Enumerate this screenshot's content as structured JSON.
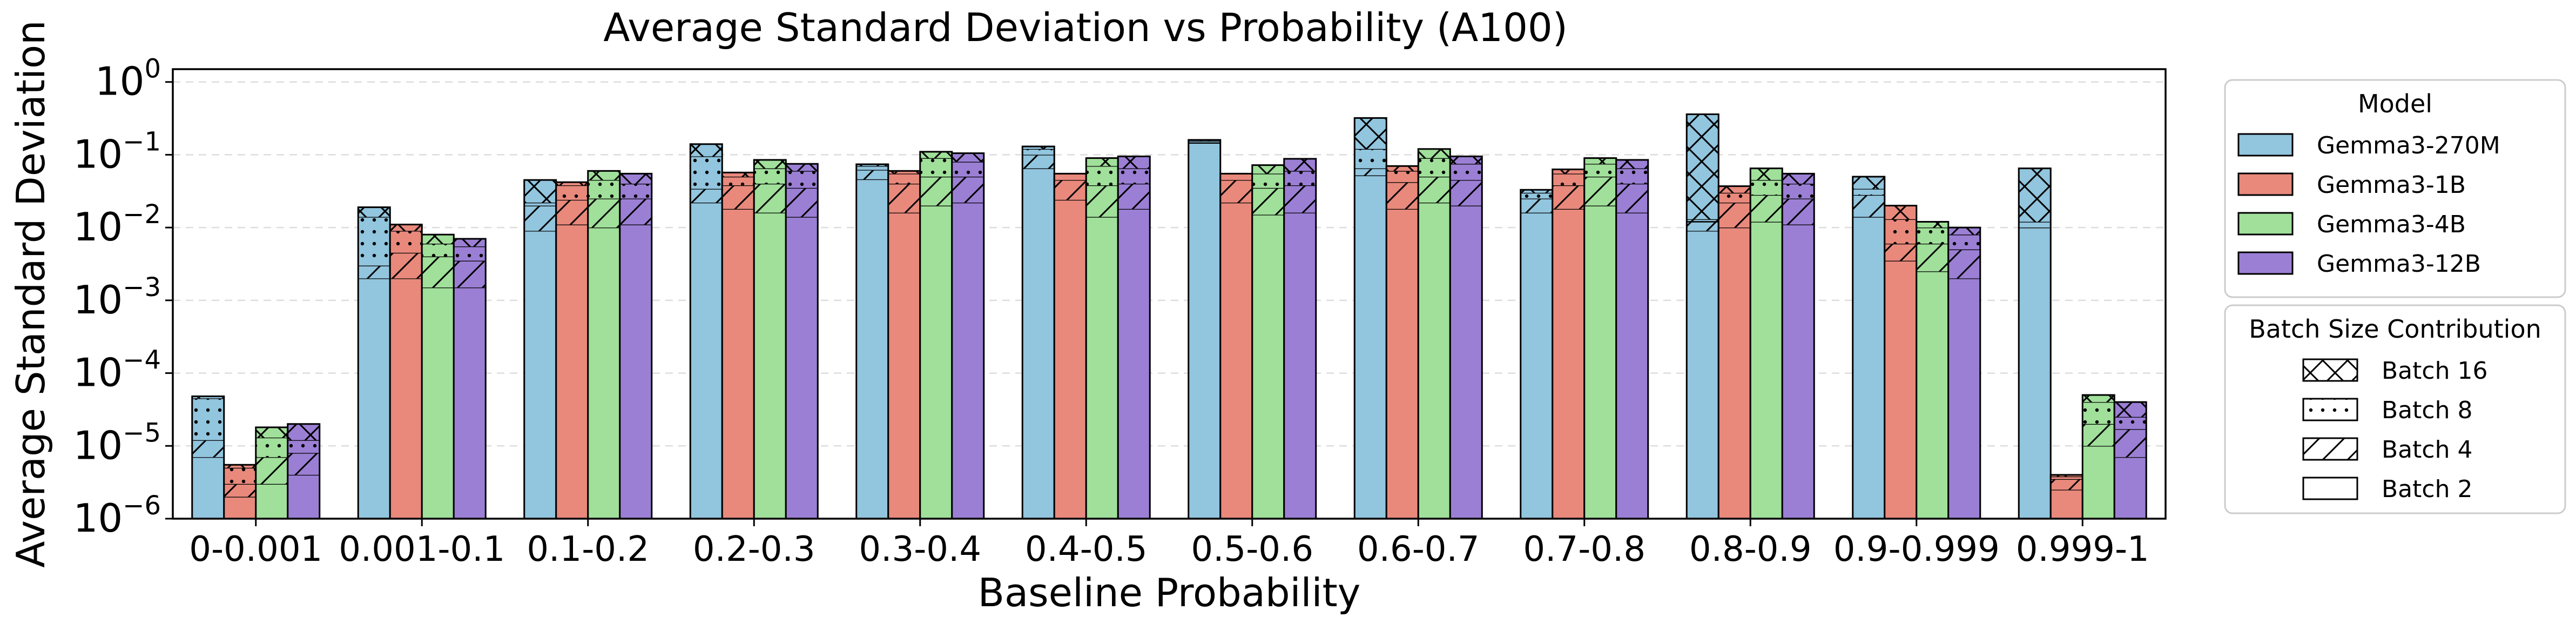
{
  "chart_data": {
    "type": "bar",
    "title": "Average Standard Deviation vs Probability (A100)",
    "xlabel": "Baseline Probability",
    "ylabel": "Average Standard Deviation",
    "yscale": "log",
    "ylim": [
      1e-06,
      1.5
    ],
    "grid": "horizontal dashed",
    "categories": [
      "0-0.001",
      "0.001-0.1",
      "0.1-0.2",
      "0.2-0.3",
      "0.3-0.4",
      "0.4-0.5",
      "0.5-0.6",
      "0.6-0.7",
      "0.7-0.8",
      "0.8-0.9",
      "0.9-0.999",
      "0.999-1"
    ],
    "y_ticks": [
      {
        "value": 1e-06,
        "base": "10",
        "exp": "−6"
      },
      {
        "value": 1e-05,
        "base": "10",
        "exp": "−5"
      },
      {
        "value": 0.0001,
        "base": "10",
        "exp": "−4"
      },
      {
        "value": 0.001,
        "base": "10",
        "exp": "−3"
      },
      {
        "value": 0.01,
        "base": "10",
        "exp": "−2"
      },
      {
        "value": 0.1,
        "base": "10",
        "exp": "−1"
      },
      {
        "value": 1,
        "base": "10",
        "exp": "0"
      }
    ],
    "batch_sizes": [
      "Batch 2",
      "Batch 4",
      "Batch 8",
      "Batch 16"
    ],
    "series": [
      {
        "name": "Gemma3-270M",
        "color": "#92c5de",
        "stacks": [
          [
            7e-06,
            1.2e-05,
            4.5e-05,
            4.8e-05
          ],
          [
            0.002,
            0.003,
            0.014,
            0.019
          ],
          [
            0.009,
            0.02,
            0.022,
            0.045
          ],
          [
            0.022,
            0.034,
            0.095,
            0.14
          ],
          [
            0.046,
            0.062,
            0.07,
            0.074
          ],
          [
            0.065,
            0.1,
            0.12,
            0.13
          ],
          [
            0.145,
            0.148,
            0.155,
            0.16
          ],
          [
            0.052,
            0.065,
            0.12,
            0.32
          ],
          [
            0.016,
            0.025,
            0.03,
            0.033
          ],
          [
            0.009,
            0.013,
            0.012,
            0.36
          ],
          [
            0.014,
            0.028,
            0.034,
            0.05
          ],
          [
            0.01,
            0.01,
            0.012,
            0.065
          ]
        ]
      },
      {
        "name": "Gemma3-1B",
        "color": "#e8897c",
        "stacks": [
          [
            2e-06,
            3e-06,
            5e-06,
            5.5e-06
          ],
          [
            0.002,
            0.0045,
            0.009,
            0.011
          ],
          [
            0.011,
            0.024,
            0.038,
            0.042
          ],
          [
            0.018,
            0.038,
            0.05,
            0.057
          ],
          [
            0.016,
            0.04,
            0.055,
            0.06
          ],
          [
            0.024,
            0.045,
            0.055,
            0.055
          ],
          [
            0.022,
            0.045,
            0.055,
            0.055
          ],
          [
            0.018,
            0.042,
            0.06,
            0.07
          ],
          [
            0.018,
            0.038,
            0.055,
            0.063
          ],
          [
            0.01,
            0.022,
            0.03,
            0.037
          ],
          [
            0.0035,
            0.006,
            0.013,
            0.02
          ],
          [
            2.5e-06,
            3.5e-06,
            3.8e-06,
            4e-06
          ]
        ]
      },
      {
        "name": "Gemma3-4B",
        "color": "#a0e09a",
        "stacks": [
          [
            3e-06,
            7e-06,
            1.3e-05,
            1.8e-05
          ],
          [
            0.0015,
            0.004,
            0.006,
            0.008
          ],
          [
            0.01,
            0.025,
            0.045,
            0.06
          ],
          [
            0.016,
            0.04,
            0.065,
            0.085
          ],
          [
            0.02,
            0.05,
            0.09,
            0.11
          ],
          [
            0.014,
            0.038,
            0.07,
            0.09
          ],
          [
            0.015,
            0.035,
            0.055,
            0.072
          ],
          [
            0.022,
            0.05,
            0.09,
            0.12
          ],
          [
            0.02,
            0.05,
            0.075,
            0.09
          ],
          [
            0.012,
            0.028,
            0.045,
            0.065
          ],
          [
            0.0025,
            0.006,
            0.01,
            0.012
          ],
          [
            1e-05,
            2e-05,
            4e-05,
            5e-05
          ]
        ]
      },
      {
        "name": "Gemma3-12B",
        "color": "#9b7fd4",
        "stacks": [
          [
            4e-06,
            8e-06,
            1.2e-05,
            2e-05
          ],
          [
            0.0015,
            0.0035,
            0.0055,
            0.007
          ],
          [
            0.011,
            0.025,
            0.04,
            0.055
          ],
          [
            0.014,
            0.035,
            0.06,
            0.075
          ],
          [
            0.022,
            0.05,
            0.08,
            0.105
          ],
          [
            0.018,
            0.04,
            0.065,
            0.095
          ],
          [
            0.016,
            0.038,
            0.06,
            0.088
          ],
          [
            0.02,
            0.045,
            0.075,
            0.095
          ],
          [
            0.016,
            0.04,
            0.065,
            0.085
          ],
          [
            0.011,
            0.025,
            0.04,
            0.055
          ],
          [
            0.002,
            0.005,
            0.008,
            0.01
          ],
          [
            7e-06,
            1.7e-05,
            2.5e-05,
            4e-05
          ]
        ]
      }
    ],
    "legends": {
      "model": {
        "title": "Model",
        "placement": "right"
      },
      "batch": {
        "title": "Batch Size Contribution",
        "placement": "right",
        "patterns": [
          "crosshatch",
          "dots",
          "diagonal",
          "none"
        ],
        "labels": [
          "Batch 16",
          "Batch 8",
          "Batch 4",
          "Batch 2"
        ]
      }
    }
  }
}
